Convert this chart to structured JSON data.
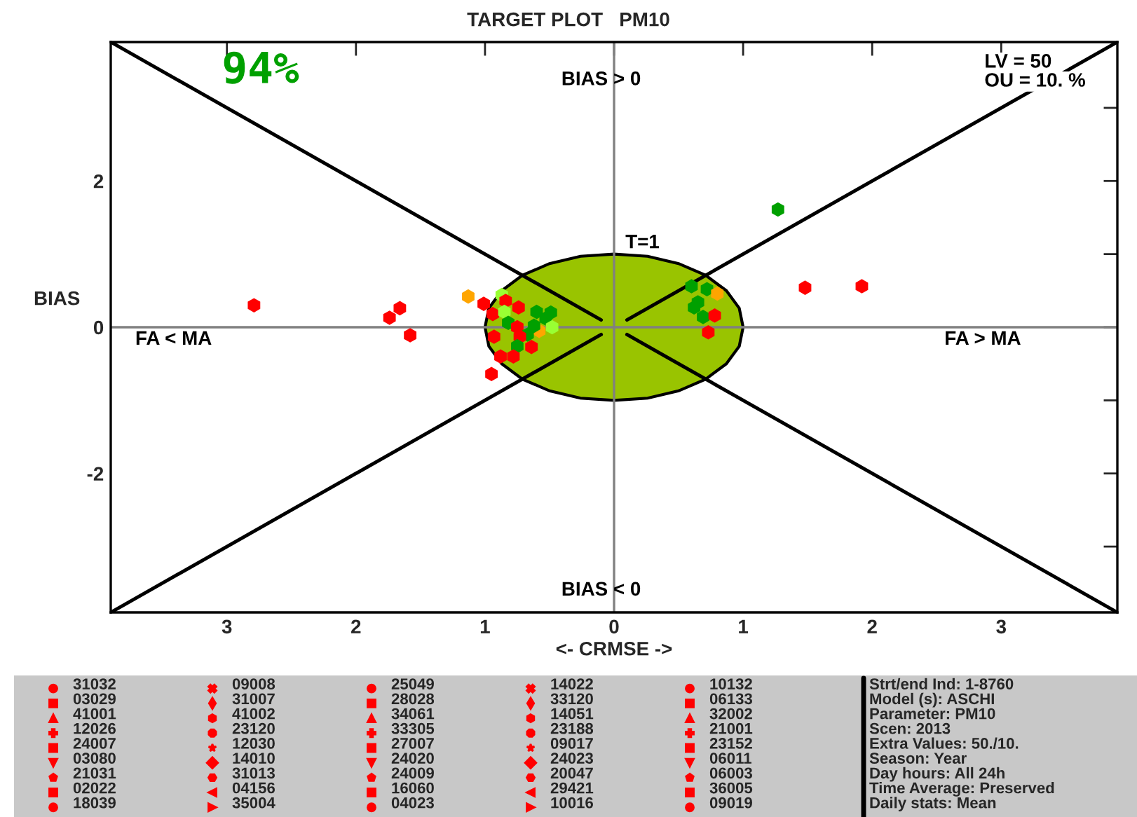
{
  "chart_data": {
    "type": "scatter",
    "title": "TARGET PLOT   PM10",
    "xlabel": "<- CRMSE ->",
    "ylabel": "BIAS",
    "xlim": [
      -3.9,
      3.9
    ],
    "ylim": [
      -3.9,
      3.9
    ],
    "xticks": [
      {
        "value": -3,
        "label": "3"
      },
      {
        "value": -2,
        "label": "2"
      },
      {
        "value": -1,
        "label": "1"
      },
      0,
      1,
      2,
      3
    ],
    "yticks": [
      {
        "value": -3,
        "label": null
      },
      -2,
      {
        "value": -1,
        "label": null
      },
      0,
      {
        "value": 1,
        "label": null
      },
      2,
      {
        "value": 3,
        "label": null
      }
    ],
    "grid": false,
    "legend": false,
    "series": [
      {
        "type": "line",
        "color": "#808080",
        "x": [
          0,
          0
        ],
        "values": [
          -3.9,
          3.9
        ]
      },
      {
        "type": "line",
        "color": "#808080",
        "x": [
          -3.9,
          3.9
        ],
        "values": [
          0,
          0
        ]
      },
      {
        "type": "area",
        "color": "#99c400",
        "x": [
          1,
          0.97,
          0.87,
          0.71,
          0.5,
          0.26,
          0,
          -0.26,
          -0.5,
          -0.71,
          -0.87,
          -0.97,
          -1,
          -0.97,
          -0.87,
          -0.71,
          -0.5,
          -0.26,
          0,
          0.26,
          0.5,
          0.71,
          0.87,
          0.97,
          1
        ],
        "values": [
          0,
          0.26,
          0.5,
          0.71,
          0.87,
          0.97,
          1,
          0.97,
          0.87,
          0.71,
          0.5,
          0.26,
          0,
          -0.26,
          -0.5,
          -0.71,
          -0.87,
          -0.97,
          -1,
          -0.97,
          -0.87,
          -0.71,
          -0.5,
          -0.26,
          0
        ]
      },
      {
        "type": "line",
        "color": "#000000",
        "x": [
          -3.9,
          -0.1
        ],
        "values": [
          3.9,
          0.1
        ]
      },
      {
        "type": "line",
        "color": "#000000",
        "x": [
          3.9,
          0.1
        ],
        "values": [
          3.9,
          0.1
        ]
      },
      {
        "type": "line",
        "color": "#000000",
        "x": [
          -3.9,
          -0.1
        ],
        "values": [
          -3.9,
          -0.1
        ]
      },
      {
        "type": "line",
        "color": "#000000",
        "x": [
          3.9,
          0.1
        ],
        "values": [
          -3.9,
          -0.1
        ]
      },
      {
        "marker": "circle",
        "x": [
          -2.79,
          -1.66,
          -1.74,
          -1.58,
          1.48,
          1.92,
          1.27,
          -1.13,
          -1.01,
          -0.95,
          -0.94,
          -0.87,
          -0.84,
          -0.74,
          -0.85,
          -0.6,
          -0.53,
          -0.82,
          -0.75,
          -0.58,
          -0.67,
          -0.93,
          -0.73,
          -0.75,
          -0.64,
          -0.88,
          -0.78,
          -0.49,
          -0.48,
          -0.62,
          0.6,
          0.72,
          0.8,
          0.65,
          0.62,
          0.69,
          0.78,
          0.73
        ],
        "values": [
          0.3,
          0.26,
          0.13,
          -0.11,
          0.54,
          0.56,
          1.61,
          0.42,
          0.32,
          -0.64,
          0.18,
          0.44,
          0.36,
          0.27,
          0.21,
          0.21,
          0.12,
          0.06,
          0.0,
          -0.05,
          -0.1,
          -0.13,
          -0.13,
          -0.26,
          -0.27,
          -0.4,
          -0.4,
          0.2,
          0.0,
          0.02,
          0.56,
          0.52,
          0.46,
          0.34,
          0.27,
          0.14,
          0.16,
          -0.07
        ],
        "colors": [
          "#ff0000",
          "#ff0000",
          "#ff0000",
          "#ff0000",
          "#ff0000",
          "#ff0000",
          "#00a000",
          "#ffa500",
          "#ff0000",
          "#ff0000",
          "#ff0000",
          "#99ff33",
          "#ff0000",
          "#ff0000",
          "#99ff33",
          "#00a000",
          "#00a000",
          "#00a000",
          "#ff0000",
          "#ffa500",
          "#00a000",
          "#ff0000",
          "#ff0000",
          "#00a000",
          "#ff0000",
          "#ff0000",
          "#ff0000",
          "#00a000",
          "#99ff33",
          "#00a000",
          "#00a000",
          "#00a000",
          "#ffa500",
          "#00a000",
          "#00a000",
          "#00a000",
          "#ff0000",
          "#ff0000"
        ]
      }
    ],
    "annotations": [
      "94%",
      "BIAS > 0",
      "LV = 50",
      "OU = 10. %",
      "T=1",
      "FA < MA",
      "FA > MA",
      "BIAS < 0",
      "31032",
      "03029",
      "41001",
      "12026",
      "24007",
      "03080",
      "21031",
      "02022",
      "18039",
      "09008",
      "31007",
      "41002",
      "23120",
      "12030",
      "14010",
      "31013",
      "04156",
      "35004",
      "25049",
      "28028",
      "34061",
      "33305",
      "27007",
      "24020",
      "24009",
      "16060",
      "04023",
      "14022",
      "33120",
      "14051",
      "23188",
      "09017",
      "24023",
      "20047",
      "29421",
      "10016",
      "10132",
      "06133",
      "32002",
      "21001",
      "23152",
      "06011",
      "06003",
      "36005",
      "09019",
      "Strt/end Ind: 1-8760",
      "Model (s): ASCHI",
      "Parameter: PM10",
      "Scen: 2013",
      "Extra Values: 50./10.",
      "Season: Year",
      "Day hours: All 24h",
      "Time Average: Preserved",
      "Daily stats: Mean"
    ]
  }
}
